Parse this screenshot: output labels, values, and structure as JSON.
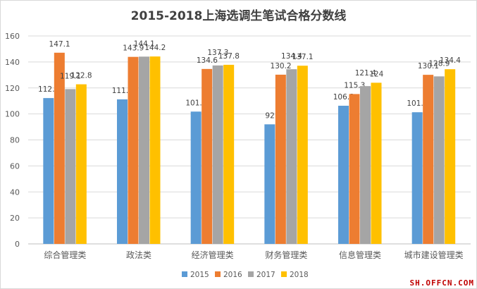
{
  "chart_data": {
    "type": "bar",
    "title": "2015-2018上海选调生笔试合格分数线",
    "categories": [
      "综合管理类",
      "政法类",
      "经济管理类",
      "财务管理类",
      "信息管理类",
      "城市建设管理类"
    ],
    "series": [
      {
        "name": "2015",
        "color": "#5b9bd5",
        "values": [
          112.2,
          111.2,
          101.8,
          92,
          106.3,
          101.3
        ]
      },
      {
        "name": "2016",
        "color": "#ed7d31",
        "values": [
          147.1,
          143.9,
          134.6,
          130.2,
          115.3,
          130.1
        ]
      },
      {
        "name": "2017",
        "color": "#a5a5a5",
        "values": [
          119.1,
          144.1,
          137.3,
          134.4,
          121.4,
          128.9
        ]
      },
      {
        "name": "2018",
        "color": "#ffc000",
        "values": [
          122.8,
          144.2,
          137.8,
          137.1,
          124,
          134.4
        ]
      }
    ],
    "ylim": [
      0,
      160
    ],
    "yticks": [
      0,
      20,
      40,
      60,
      80,
      100,
      120,
      140,
      160
    ],
    "grid": true,
    "legend": "bottom"
  },
  "watermark": "SH.OFFCN.COM"
}
